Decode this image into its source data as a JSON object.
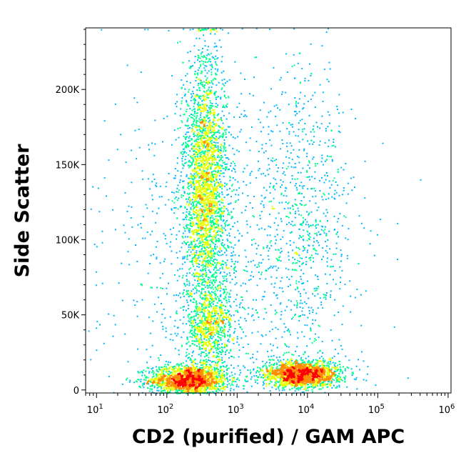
{
  "chart_data": {
    "type": "scatter",
    "subtype": "flow-cytometry density plot",
    "title": "",
    "xlabel": "CD2 (purified) / GAM APC",
    "ylabel": "Side Scatter",
    "x_scale": "log",
    "xlim": [
      7,
      1100000
    ],
    "ylim": [
      -2000,
      241000
    ],
    "x_ticks": [
      {
        "value": 10,
        "base": "10",
        "exp": "1"
      },
      {
        "value": 100,
        "base": "10",
        "exp": "2"
      },
      {
        "value": 1000,
        "base": "10",
        "exp": "3"
      },
      {
        "value": 10000,
        "base": "10",
        "exp": "4"
      },
      {
        "value": 100000,
        "base": "10",
        "exp": "5"
      },
      {
        "value": 1000000,
        "base": "10",
        "exp": "6"
      }
    ],
    "y_ticks": [
      {
        "value": 0,
        "label": "0"
      },
      {
        "value": 50000,
        "label": "50K"
      },
      {
        "value": 100000,
        "label": "100K"
      },
      {
        "value": 150000,
        "label": "150K"
      },
      {
        "value": 200000,
        "label": "200K"
      }
    ],
    "color_scale": [
      "#0000ff",
      "#00b8ff",
      "#00ff8c",
      "#e6ff00",
      "#ff8c00",
      "#ff0000"
    ],
    "grid": false,
    "legend": "none",
    "populations": [
      {
        "x_center": 200,
        "x_spread_decades": 0.28,
        "y_center": 7000,
        "y_spread": 5000,
        "weight": 0.2
      },
      {
        "x_center": 350,
        "x_spread_decades": 0.16,
        "y_center": 135000,
        "y_spread": 45000,
        "weight": 0.32
      },
      {
        "x_center": 420,
        "x_spread_decades": 0.18,
        "y_center": 42000,
        "y_spread": 13000,
        "weight": 0.08
      },
      {
        "x_center": 8000,
        "x_spread_decades": 0.28,
        "y_center": 11000,
        "y_spread": 4500,
        "weight": 0.2
      },
      {
        "x_center": 9000,
        "x_spread_decades": 0.35,
        "y_center": 110000,
        "y_spread": 55000,
        "weight": 0.08
      },
      {
        "x_center": 600,
        "x_spread_decades": 0.9,
        "y_center": 80000,
        "y_spread": 70000,
        "weight": 0.12
      }
    ]
  }
}
